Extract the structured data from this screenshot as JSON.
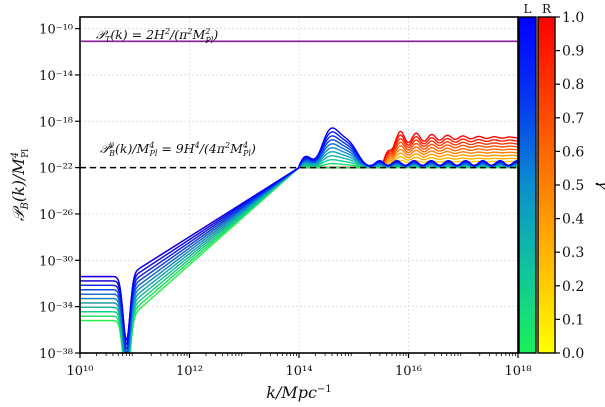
{
  "chart_data": {
    "type": "line",
    "xlabel": "k/Mpc⁻¹",
    "ylabel": "𝒫_B(k)/M₄_Pl",
    "x_scale": "log",
    "y_scale": "log",
    "xlim_log10": [
      10,
      18
    ],
    "ylim_log10": [
      -38,
      -9
    ],
    "x_ticks": [
      {
        "v": 10,
        "label": "10¹⁰"
      },
      {
        "v": 12,
        "label": "10¹²"
      },
      {
        "v": 14,
        "label": "10¹⁴"
      },
      {
        "v": 16,
        "label": "10¹⁶"
      },
      {
        "v": 18,
        "label": "10¹⁸"
      }
    ],
    "y_ticks": [
      {
        "v": -10,
        "label": "10⁻¹⁰"
      },
      {
        "v": -14,
        "label": "10⁻¹⁴"
      },
      {
        "v": -18,
        "label": "10⁻¹⁸"
      },
      {
        "v": -22,
        "label": "10⁻²²"
      },
      {
        "v": -26,
        "label": "10⁻²⁶"
      },
      {
        "v": -30,
        "label": "10⁻³⁰"
      },
      {
        "v": -34,
        "label": "10⁻³⁴"
      },
      {
        "v": -38,
        "label": "10⁻³⁸"
      }
    ],
    "grid": true,
    "annotations": [
      {
        "text": "𝒫_T(k) = 2H²/(π²M²_Pl)",
        "color": "#8a1a9b",
        "x_log10": 10.2,
        "y_log10": -10.1
      },
      {
        "text": "𝒫⁰_B(k)/M⁴_Pl = 9H⁴/(4π²M⁴_Pl)",
        "color": "#000000",
        "x_log10": 10.2,
        "y_log10": -21.1
      }
    ],
    "tensor_line": {
      "y_log10": -11.1,
      "color": "#8a1a9b"
    },
    "de_sitter_line": {
      "y_log10": -22.0,
      "color": "#000000",
      "style": "dashed"
    },
    "gamma_values": [
      0.0,
      0.1,
      0.2,
      0.3,
      0.4,
      0.5,
      0.6,
      0.7,
      0.8,
      0.9,
      1.0
    ],
    "colorbar": {
      "label": "γ",
      "range": [
        0.0,
        1.0
      ],
      "ticks": [
        "0.0",
        "0.1",
        "0.2",
        "0.3",
        "0.4",
        "0.5",
        "0.6",
        "0.7",
        "0.8",
        "0.9",
        "1.0"
      ],
      "left_header": "L",
      "right_header": "R",
      "left_colors": [
        "#19f25a",
        "#10c49e",
        "#0a8fd0",
        "#0538f0",
        "#0000ff"
      ],
      "right_colors": [
        "#ffff00",
        "#ffc000",
        "#ff8000",
        "#ff4000",
        "#ff0000"
      ]
    }
  }
}
